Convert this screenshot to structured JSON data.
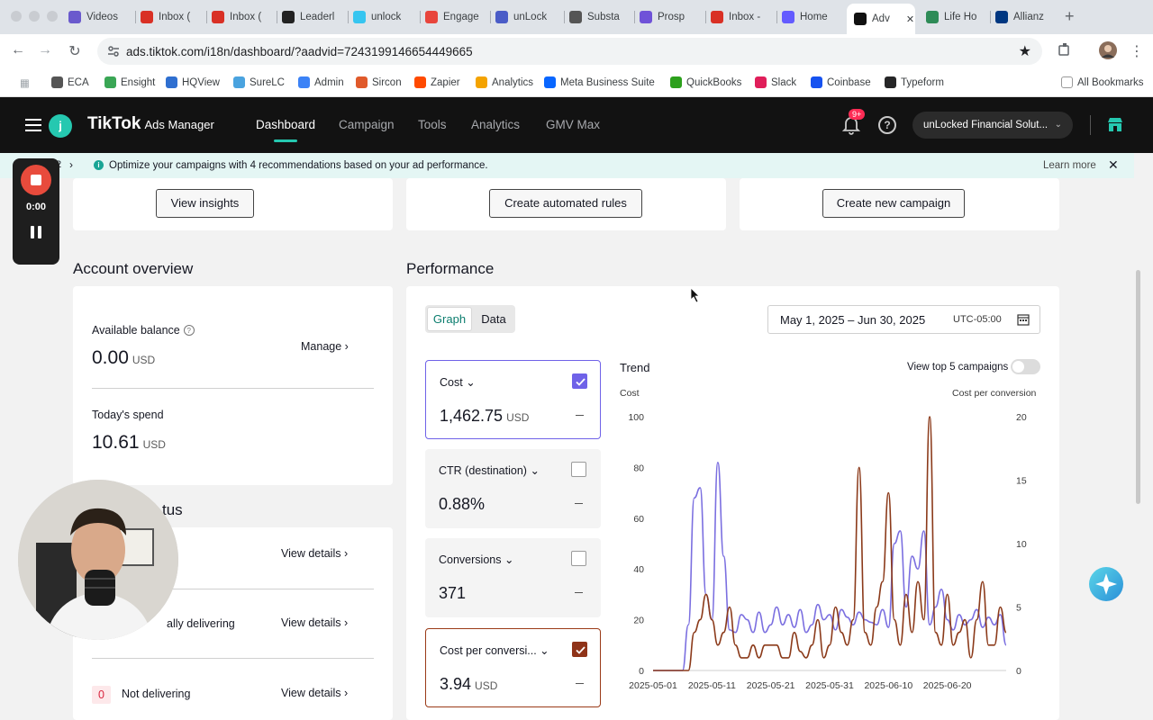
{
  "browser": {
    "tabs": [
      {
        "label": "Videos",
        "icon": "videos-favicon",
        "color": "#6a5acd"
      },
      {
        "label": "Inbox (",
        "icon": "gmail-favicon",
        "color": "#d93025"
      },
      {
        "label": "Inbox (",
        "icon": "gmail-favicon",
        "color": "#d93025"
      },
      {
        "label": "Leaderl",
        "icon": "sk-favicon",
        "color": "#222222"
      },
      {
        "label": "unlock",
        "icon": "slack-favicon",
        "color": "#36c5f0"
      },
      {
        "label": "Engage",
        "icon": "engage-favicon",
        "color": "#e8453c"
      },
      {
        "label": "unLock",
        "icon": "unlock-favicon",
        "color": "#4a5cc7"
      },
      {
        "label": "Substa",
        "icon": "substack-favicon",
        "color": "#555555"
      },
      {
        "label": "Prosp",
        "icon": "prosp-favicon",
        "color": "#6f52d8"
      },
      {
        "label": "Inbox -",
        "icon": "gmail-favicon",
        "color": "#d93025"
      },
      {
        "label": "Home",
        "icon": "stripe-favicon",
        "color": "#635bff"
      },
      {
        "label": "Adv",
        "icon": "tiktok-favicon",
        "color": "#111111"
      },
      {
        "label": "Life Ho",
        "icon": "lifeho-favicon",
        "color": "#2e8b57"
      },
      {
        "label": "Allianz",
        "icon": "allianz-favicon",
        "color": "#003781"
      }
    ],
    "url": "ads.tiktok.com/i18n/dashboard/?aadvid=7243199146654449665",
    "bookmarks": [
      {
        "label": "ECA",
        "color": "#555555"
      },
      {
        "label": "Ensight",
        "color": "#3aa655"
      },
      {
        "label": "HQView",
        "color": "#2f6fd0"
      },
      {
        "label": "SureLC",
        "color": "#4aa3df"
      },
      {
        "label": "Admin",
        "color": "#3b82f6"
      },
      {
        "label": "Sircon",
        "color": "#e05a2b"
      },
      {
        "label": "Zapier",
        "color": "#ff4a00"
      },
      {
        "label": "Analytics",
        "color": "#f4a300"
      },
      {
        "label": "Meta Business Suite",
        "color": "#0866ff"
      },
      {
        "label": "QuickBooks",
        "color": "#2ca01c"
      },
      {
        "label": "Slack",
        "color": "#e01e5a"
      },
      {
        "label": "Coinbase",
        "color": "#1652f0"
      },
      {
        "label": "Typeform",
        "color": "#262627"
      }
    ],
    "all_bookmarks": "All Bookmarks"
  },
  "header": {
    "brand": "TikTok",
    "brand_sub": "Ads Manager",
    "avatar_letter": "j",
    "nav": [
      "Dashboard",
      "Campaign",
      "Tools",
      "Analytics",
      "GMV Max"
    ],
    "notif_badge": "9+",
    "account": "unLocked Financial Solut..."
  },
  "notice": {
    "prev": "2",
    "text": "Optimize your campaigns with 4 recommendations based on your ad performance.",
    "learn_more": "Learn more"
  },
  "top_buttons": {
    "insights": "View insights",
    "rules": "Create automated rules",
    "campaign": "Create new campaign"
  },
  "account_overview": {
    "title": "Account overview",
    "balance_label": "Available balance",
    "balance_value": "0.00",
    "currency": "USD",
    "manage": "Manage",
    "spend_label": "Today's spend",
    "spend_value": "10.61"
  },
  "ad_status": {
    "title_fragment": "tus",
    "row2_label": "ally delivering",
    "row3_count": "0",
    "row3_label": "Not delivering",
    "view_details": "View details"
  },
  "performance": {
    "title": "Performance",
    "tab_graph": "Graph",
    "tab_data": "Data",
    "date_range": "May 1, 2025 – Jun 30, 2025",
    "timezone": "UTC-05:00",
    "metrics": [
      {
        "name": "Cost",
        "value": "1,462.75",
        "unit": "USD",
        "checked": true
      },
      {
        "name": "CTR (destination)",
        "value": "0.88%",
        "unit": "",
        "checked": false
      },
      {
        "name": "Conversions",
        "value": "371",
        "unit": "",
        "checked": false
      },
      {
        "name": "Cost per conversi...",
        "value": "3.94",
        "unit": "USD",
        "checked": true
      }
    ],
    "trend_title": "Trend",
    "top5_label": "View top 5 campaigns"
  },
  "recorder": {
    "time": "0:00"
  },
  "chart_data": {
    "type": "line",
    "ylabel": "Cost",
    "y2label": "Cost per conversion",
    "ylim": [
      0,
      100
    ],
    "y2lim": [
      0,
      20
    ],
    "yticks": [
      0,
      20,
      40,
      60,
      80,
      100
    ],
    "y2ticks": [
      0,
      5,
      10,
      15,
      20
    ],
    "xticks": [
      "2025-05-01",
      "2025-05-11",
      "2025-05-21",
      "2025-05-31",
      "2025-06-10",
      "2025-06-20"
    ],
    "colors": {
      "cost": "#7b6fe0",
      "cpc": "#8b3a1a"
    },
    "series": [
      {
        "name": "Cost",
        "axis": "left",
        "values": [
          0,
          0,
          0,
          0,
          0,
          0,
          18,
          68,
          72,
          30,
          20,
          82,
          45,
          16,
          15,
          22,
          20,
          15,
          23,
          15,
          18,
          25,
          18,
          22,
          17,
          24,
          15,
          18,
          26,
          20,
          22,
          16,
          24,
          21,
          18,
          23,
          20,
          19,
          18,
          24,
          17,
          50,
          55,
          25,
          45,
          40,
          55,
          18,
          25,
          32,
          20,
          16,
          22,
          18,
          20,
          24,
          17,
          21,
          18,
          22,
          10
        ]
      },
      {
        "name": "Cost per conversion",
        "axis": "right",
        "values": [
          0,
          0,
          0,
          0,
          0,
          0,
          0,
          3,
          4,
          6,
          4,
          2,
          3,
          5,
          2,
          1,
          1,
          2,
          1,
          2,
          2,
          2,
          1,
          1,
          3,
          1.5,
          1,
          2,
          4,
          1,
          2,
          5,
          3,
          2,
          4,
          16,
          3,
          2,
          5,
          7,
          14,
          4,
          2,
          6,
          3,
          7,
          4,
          20,
          3,
          2,
          6,
          2,
          3,
          4,
          1,
          4,
          7,
          2,
          2,
          5,
          3
        ]
      }
    ]
  }
}
